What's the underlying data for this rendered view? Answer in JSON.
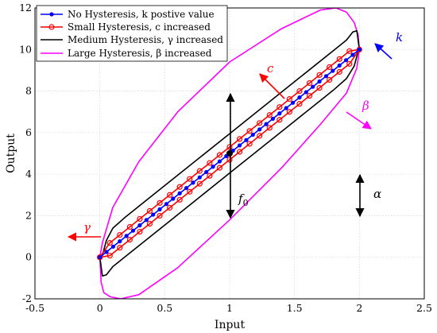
{
  "chart_data": {
    "type": "line",
    "xlabel": "Input",
    "ylabel": "Output",
    "xlim": [
      -0.5,
      2.5
    ],
    "ylim": [
      -2,
      12
    ],
    "x_ticks": [
      "-0.5",
      "0",
      "0.5",
      "1",
      "1.5",
      "2",
      "2.5"
    ],
    "y_ticks": [
      "-2",
      "0",
      "2",
      "4",
      "6",
      "8",
      "10",
      "12"
    ],
    "grid": true,
    "legend_position": "top-left",
    "series": [
      {
        "name": "No Hysteresis, k postive value",
        "color": "#0000ff",
        "marker": "dot",
        "x": [
          0,
          0.0513,
          0.1026,
          0.1538,
          0.2051,
          0.2564,
          0.3077,
          0.359,
          0.4103,
          0.4615,
          0.5128,
          0.5641,
          0.6154,
          0.6667,
          0.7179,
          0.7692,
          0.8205,
          0.8718,
          0.9231,
          0.9744,
          1.0256,
          1.0769,
          1.1282,
          1.1795,
          1.2308,
          1.2821,
          1.3333,
          1.3846,
          1.4359,
          1.4872,
          1.5385,
          1.5897,
          1.641,
          1.6923,
          1.7436,
          1.7949,
          1.8462,
          1.8974,
          1.9487,
          2
        ],
        "y": [
          0,
          0.2564,
          0.5128,
          0.7692,
          1.0256,
          1.2821,
          1.5385,
          1.7949,
          2.0513,
          2.3077,
          2.5641,
          2.8205,
          3.0769,
          3.3333,
          3.5897,
          3.8462,
          4.1026,
          4.359,
          4.6154,
          4.8718,
          5.1282,
          5.3846,
          5.641,
          5.8974,
          6.1538,
          6.4103,
          6.6667,
          6.9231,
          7.1795,
          7.4359,
          7.6923,
          7.9487,
          8.2051,
          8.4615,
          8.7179,
          8.9744,
          9.2308,
          9.4872,
          9.7436,
          10
        ]
      },
      {
        "name": "Small Hysteresis, c increased",
        "color": "#ff0000",
        "marker": "circle",
        "x": [
          0,
          0.0769,
          0.1538,
          0.2308,
          0.3077,
          0.3846,
          0.4615,
          0.5385,
          0.6154,
          0.6923,
          0.7692,
          0.8462,
          0.9231,
          1,
          1.0769,
          1.1538,
          1.2308,
          1.3077,
          1.3846,
          1.4615,
          1.5385,
          1.6154,
          1.6923,
          1.7692,
          1.8462,
          1.9231,
          2,
          1.9231,
          1.8462,
          1.7692,
          1.6923,
          1.6154,
          1.5385,
          1.4615,
          1.3846,
          1.3077,
          1.2308,
          1.1538,
          1.0769,
          1,
          0.9231,
          0.8462,
          0.7692,
          0.6923,
          0.6154,
          0.5385,
          0.4615,
          0.3846,
          0.3077,
          0.2308,
          0.1538,
          0.0769,
          0
        ],
        "y": [
          0,
          0.0769,
          0.4615,
          0.8462,
          1.2308,
          1.6154,
          2,
          2.3846,
          2.7692,
          3.1538,
          3.5385,
          3.9231,
          4.3077,
          4.6923,
          5.0769,
          5.4615,
          5.8462,
          6.2308,
          6.6154,
          7,
          7.3846,
          7.7692,
          8.1538,
          8.5385,
          8.9231,
          9.3077,
          10,
          9.9231,
          9.5385,
          9.1538,
          8.7692,
          8.3846,
          8,
          7.6154,
          7.2308,
          6.8462,
          6.4615,
          6.0769,
          5.6923,
          5.3077,
          4.9231,
          4.5385,
          4.1538,
          3.7692,
          3.3846,
          3,
          2.6154,
          2.2308,
          1.8462,
          1.4615,
          1.0769,
          0.6923,
          0
        ]
      },
      {
        "name": "Medium Hysteresis, γ increased",
        "color": "#000000",
        "marker": "none",
        "x": [
          0,
          0.02,
          0.05,
          0.1,
          0.2,
          0.5,
          1,
          1.5,
          1.8,
          1.9,
          1.96,
          1.99,
          2,
          1.98,
          1.95,
          1.9,
          1.8,
          1.5,
          1,
          0.5,
          0.2,
          0.1,
          0.05,
          0.02,
          0
        ],
        "y": [
          0,
          -0.9,
          -0.85,
          -0.45,
          0.05,
          1.55,
          4.05,
          6.55,
          8.05,
          8.6,
          9.2,
          9.9,
          10,
          10.9,
          10.85,
          10.45,
          9.95,
          8.45,
          5.95,
          3.45,
          1.95,
          1.4,
          0.8,
          0.1,
          0
        ]
      },
      {
        "name": "Large Hysteresis, β increased",
        "color": "#ff00ff",
        "marker": "none",
        "x": [
          0,
          0.01,
          0.03,
          0.08,
          0.16,
          0.3,
          0.6,
          1,
          1.4,
          1.7,
          1.9,
          1.98,
          2,
          1.99,
          1.96,
          1.9,
          1.82,
          1.7,
          1.4,
          1,
          0.6,
          0.3,
          0.1,
          0.02,
          0
        ],
        "y": [
          0,
          -1.2,
          -1.7,
          -1.9,
          -2,
          -1.8,
          -0.5,
          1.8,
          4.3,
          6.4,
          7.9,
          9.1,
          10,
          10.7,
          11.3,
          11.8,
          12,
          11.9,
          11,
          9.4,
          7,
          4.6,
          2.4,
          0.7,
          0
        ]
      }
    ],
    "center_point": {
      "x": 1,
      "y": 5
    },
    "annotations": {
      "k": {
        "label": "k",
        "color": "#0000ff"
      },
      "c": {
        "label": "c",
        "color": "#ff0000"
      },
      "beta": {
        "label": "β",
        "color": "#ff00ff"
      },
      "gamma": {
        "label": "γ",
        "color": "#ff0000"
      },
      "alpha": {
        "label": "α",
        "color": "#000000"
      },
      "f0": {
        "label": "f",
        "subscript": "0",
        "color": "#000000"
      }
    }
  }
}
